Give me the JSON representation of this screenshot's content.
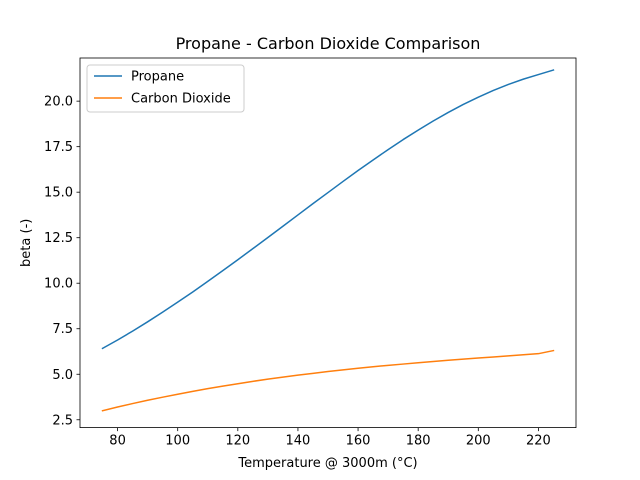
{
  "chart_data": {
    "type": "line",
    "title": "Propane - Carbon Dioxide Comparison",
    "xlabel": "Temperature @ 3000m (°C)",
    "ylabel": "beta (-)",
    "xlim": [
      67.5,
      232.5
    ],
    "ylim": [
      2.07,
      22.37
    ],
    "xticks": [
      80,
      100,
      120,
      140,
      160,
      180,
      200,
      220
    ],
    "yticks": [
      2.5,
      5.0,
      7.5,
      10.0,
      12.5,
      15.0,
      17.5,
      20.0
    ],
    "ytick_labels": [
      "2.5",
      "5.0",
      "7.5",
      "10.0",
      "12.5",
      "15.0",
      "17.5",
      "20.0"
    ],
    "grid": false,
    "legend_position": "top-left",
    "x": [
      75,
      80,
      85,
      90,
      95,
      100,
      105,
      110,
      115,
      120,
      125,
      130,
      135,
      140,
      145,
      150,
      155,
      160,
      165,
      170,
      175,
      180,
      185,
      190,
      195,
      200,
      205,
      210,
      215,
      220,
      225
    ],
    "series": [
      {
        "name": "Propane",
        "color": "#1f77b4",
        "values": [
          6.42,
          6.88,
          7.37,
          7.88,
          8.41,
          8.96,
          9.52,
          10.1,
          10.69,
          11.29,
          11.9,
          12.51,
          13.13,
          13.75,
          14.37,
          14.98,
          15.59,
          16.19,
          16.77,
          17.34,
          17.89,
          18.41,
          18.91,
          19.38,
          19.82,
          20.22,
          20.59,
          20.92,
          21.21,
          21.46,
          21.71
        ]
      },
      {
        "name": "Carbon Dioxide",
        "color": "#ff7f0e",
        "values": [
          3.0,
          3.2,
          3.39,
          3.57,
          3.74,
          3.9,
          4.06,
          4.21,
          4.35,
          4.48,
          4.61,
          4.73,
          4.84,
          4.95,
          5.05,
          5.15,
          5.24,
          5.33,
          5.41,
          5.49,
          5.56,
          5.63,
          5.7,
          5.77,
          5.83,
          5.89,
          5.95,
          6.01,
          6.07,
          6.13,
          6.3
        ]
      }
    ]
  }
}
